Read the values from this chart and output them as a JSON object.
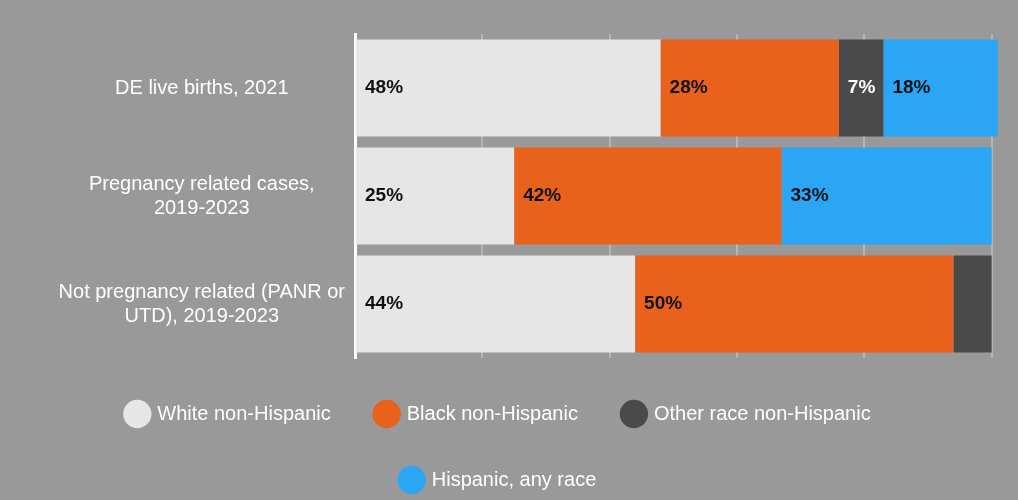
{
  "chart_data": {
    "type": "bar",
    "orientation": "horizontal",
    "stacked": true,
    "categories": [
      "DE live births, 2021",
      "Pregnancy related cases, 2019-2023",
      "Not pregnancy related (PANR or UTD), 2019-2023"
    ],
    "series": [
      {
        "name": "White non-Hispanic",
        "color": "#e6e6e6",
        "values": [
          48,
          25,
          44
        ],
        "value_labels": [
          "48%",
          "25%",
          "44%"
        ]
      },
      {
        "name": "Black non-Hispanic",
        "color": "#e8621c",
        "values": [
          28,
          42,
          50
        ],
        "value_labels": [
          "28%",
          "42%",
          "50%"
        ]
      },
      {
        "name": "Other race non-Hispanic",
        "color": "#4a4a4a",
        "values": [
          7,
          null,
          6
        ],
        "value_labels": [
          "7%",
          null,
          null
        ]
      },
      {
        "name": "Hispanic, any race",
        "color": "#2aa6f5",
        "values": [
          18,
          33,
          null
        ],
        "value_labels": [
          "18%",
          "33%",
          null
        ]
      }
    ],
    "xlim": [
      0,
      101
    ],
    "xticks": [
      {
        "value": 0,
        "label": null
      },
      {
        "value": 20,
        "label": null
      },
      {
        "value": 40,
        "label": null
      },
      {
        "value": 60,
        "label": null
      },
      {
        "value": 80,
        "label": null
      },
      {
        "value": 100,
        "label": null
      }
    ],
    "tick_labels": "y",
    "grid": "x",
    "legend": "bottom"
  }
}
